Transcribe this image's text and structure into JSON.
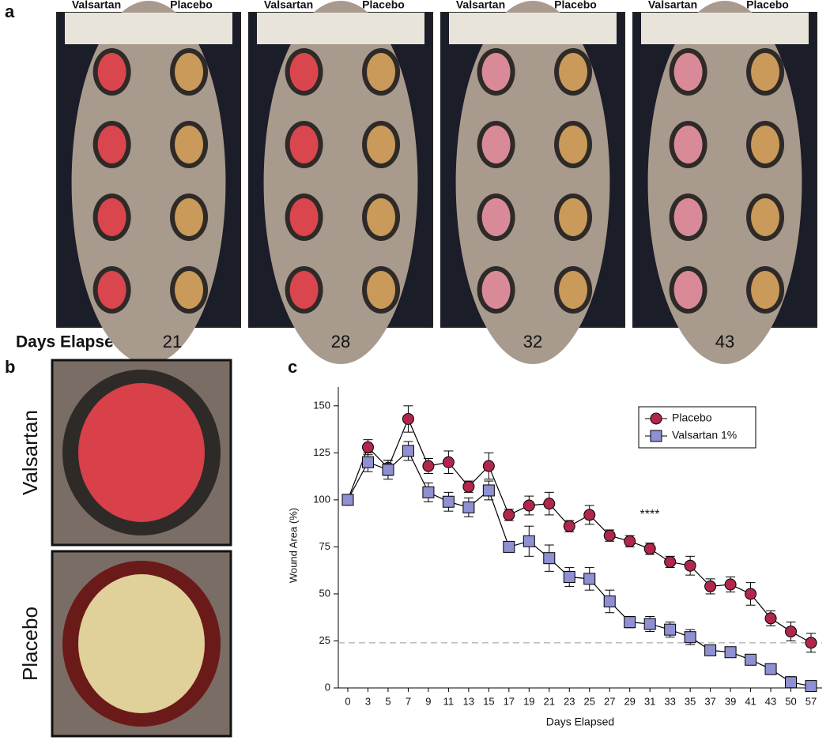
{
  "panel_a": {
    "label": "a",
    "days_label": "Days Elapsed",
    "photos": [
      {
        "left": "Valsartan",
        "right": "Placebo",
        "day": "21"
      },
      {
        "left": "Valsartan",
        "right": "Placebo",
        "day": "28"
      },
      {
        "left": "Valsartan",
        "right": "Placebo",
        "day": "32"
      },
      {
        "left": "Valsartan",
        "right": "Placebo",
        "day": "43"
      }
    ]
  },
  "panel_b": {
    "label": "b",
    "photos": [
      "Valsartan",
      "Placebo"
    ]
  },
  "panel_c": {
    "label": "c"
  },
  "chart_data": {
    "type": "line",
    "x_label": "Days Elapsed",
    "y_label": "Wound Area (%)",
    "categories": [
      "0",
      "3",
      "5",
      "7",
      "9",
      "11",
      "13",
      "15",
      "17",
      "19",
      "21",
      "23",
      "25",
      "27",
      "29",
      "31",
      "33",
      "35",
      "37",
      "39",
      "41",
      "43",
      "50",
      "57"
    ],
    "series": [
      {
        "name": "Placebo",
        "color": "#b0264c",
        "marker": "circle",
        "values": [
          100,
          128,
          117,
          143,
          118,
          120,
          107,
          118,
          92,
          97,
          98,
          86,
          92,
          81,
          78,
          74,
          67,
          65,
          54,
          55,
          50,
          37,
          30,
          24
        ],
        "errors": [
          0,
          4,
          4,
          7,
          4,
          6,
          3,
          7,
          3,
          5,
          6,
          3,
          5,
          3,
          3,
          3,
          3,
          5,
          4,
          4,
          6,
          4,
          5,
          5
        ]
      },
      {
        "name": "Valsartan 1%",
        "color": "#8e90d2",
        "marker": "square",
        "values": [
          100,
          120,
          116,
          126,
          104,
          99,
          96,
          105,
          75,
          78,
          69,
          59,
          58,
          46,
          35,
          34,
          31,
          27,
          20,
          19,
          15,
          10,
          3,
          1
        ],
        "errors": [
          0,
          5,
          5,
          5,
          5,
          5,
          5,
          5,
          2,
          8,
          7,
          5,
          6,
          6,
          3,
          4,
          4,
          4,
          2,
          2,
          2,
          2,
          3,
          2
        ]
      }
    ],
    "ylim": [
      0,
      160
    ],
    "yticks": [
      0,
      25,
      50,
      75,
      100,
      125,
      150
    ],
    "reference_line": 24,
    "annotation": {
      "text": "****"
    },
    "legend": "upper right"
  }
}
